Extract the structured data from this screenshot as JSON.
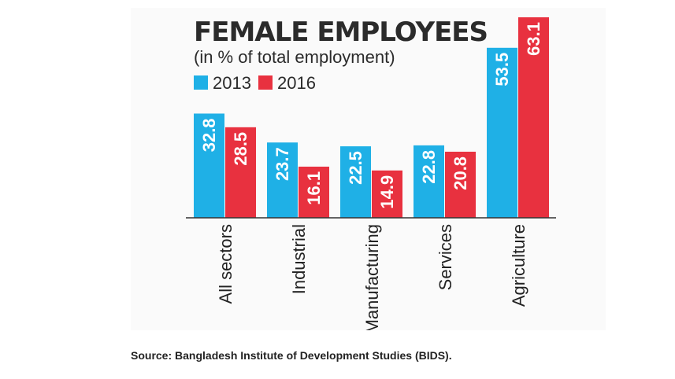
{
  "chart_data": {
    "type": "bar",
    "title": "FEMALE EMPLOYEES",
    "subtitle": "(in % of total employment)",
    "categories": [
      "All sectors",
      "Industrial",
      "Manufacturing",
      "Services",
      "Agriculture"
    ],
    "series": [
      {
        "name": "2013",
        "color": "#1fb0e6",
        "values": [
          32.8,
          23.7,
          22.5,
          22.8,
          53.5
        ]
      },
      {
        "name": "2016",
        "color": "#e8313f",
        "values": [
          28.5,
          16.1,
          14.9,
          20.8,
          63.1
        ]
      }
    ],
    "ylim": [
      0,
      63.1
    ],
    "grid": false,
    "legend_position": "top-left",
    "value_labels": "inside-bar-rotated",
    "category_labels": "rotated-vertical"
  },
  "source": "Source: Bangladesh Institute of Development Studies (BIDS)."
}
